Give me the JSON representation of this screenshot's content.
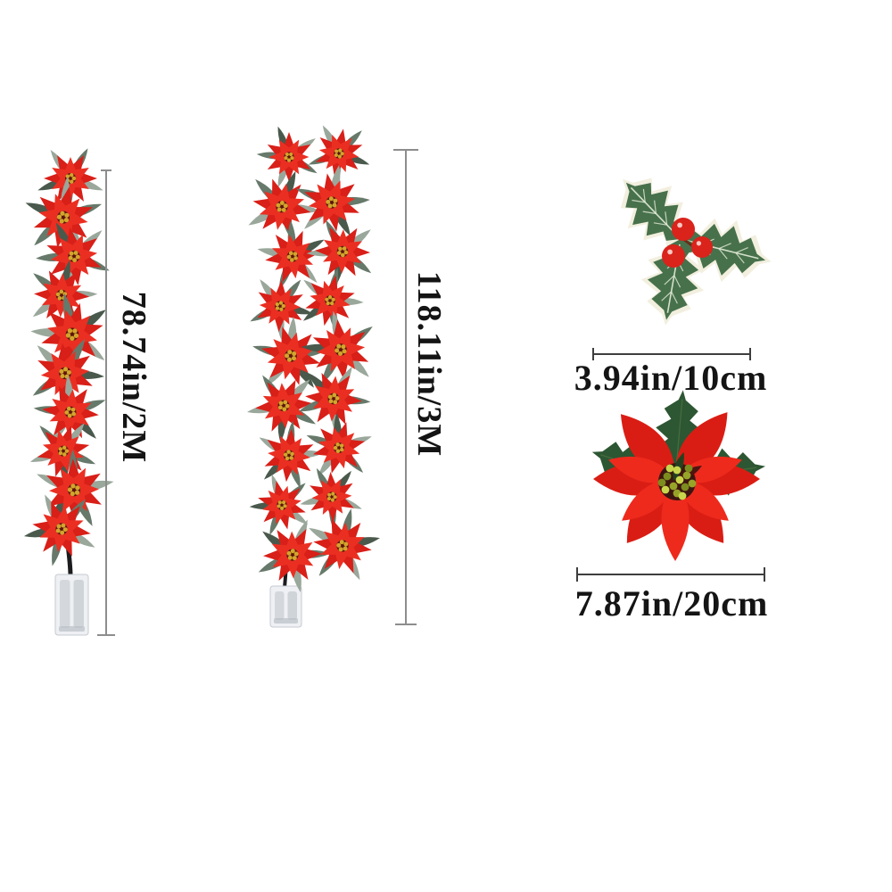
{
  "page": {
    "type": "product-dimensions-infographic",
    "subject": "Christmas poinsettia flower garland string lights"
  },
  "measurements": {
    "garland_2m": {
      "label": "78.74in/2M",
      "orientation": "vertical"
    },
    "garland_3m": {
      "label": "118.11in/3M",
      "orientation": "vertical"
    },
    "holly_width": {
      "label": "3.94in/10cm",
      "orientation": "horizontal"
    },
    "flower_width": {
      "label": "7.87in/20cm",
      "orientation": "horizontal"
    }
  },
  "items": {
    "garland_2m": {
      "name": "poinsettia-garland-2m",
      "flower_count": 10,
      "strands": 1,
      "has_battery_pack": true
    },
    "garland_3m": {
      "name": "poinsettia-garland-3m",
      "flower_count": 18,
      "strands": 2,
      "has_battery_pack": true
    },
    "holly": {
      "name": "holly-sprig-with-berries",
      "leaf_count": 3,
      "berry_count": 3
    },
    "poinsettia": {
      "name": "large-poinsettia-flower-head",
      "petal_count": 6
    }
  },
  "colors": {
    "background": "#ffffff",
    "petal_red": "#ea2f22",
    "petal_red_dark": "#d81f18",
    "flower_center_gold": "#d2a52c",
    "flower_center_dark": "#5c130d",
    "garland_leaf": "#9aa79b",
    "garland_leaf_mid": "#66796a",
    "garland_leaf_dark": "#49594c",
    "holly_green": "#47714b",
    "holly_vein": "#e3ecd8",
    "holly_backing": "#f2efdf",
    "berry_red": "#d9231b",
    "berry_highlight": "#ffd9d4",
    "poinsettia_red": "#ee2a1d",
    "poinsettia_red_dark": "#da1d14",
    "poinsettia_leaf": "#2d5633",
    "stamen_yellow": "#c9d64b",
    "stamen_olive": "#96a428",
    "stamen_dark": "#7c8c1e",
    "measure_gray": "#8d8d8d",
    "measure_dark": "#3e3e3e",
    "label_text": "#141414",
    "battery_box": "#eef0f3",
    "battery_cell": "#d4d8dd",
    "battery_edge": "#c6cad0",
    "wire": "#1c1c1e"
  }
}
